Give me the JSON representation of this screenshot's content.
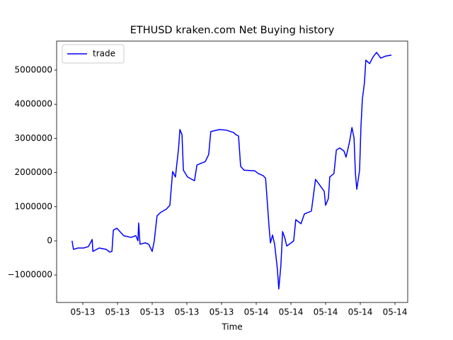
{
  "chart_data": {
    "type": "line",
    "title": "ETHUSD kraken.com Net Buying history",
    "x_label": "Time",
    "legend": "upper left",
    "x": [
      -0.31,
      -0.27,
      -0.14,
      0.02,
      0.16,
      0.22,
      0.27,
      0.29,
      0.47,
      0.67,
      0.78,
      0.84,
      0.88,
      0.98,
      1.18,
      1.39,
      1.53,
      1.59,
      1.61,
      1.65,
      1.8,
      1.9,
      2.0,
      2.06,
      2.14,
      2.24,
      2.41,
      2.51,
      2.59,
      2.67,
      2.76,
      2.8,
      2.86,
      2.9,
      3.02,
      3.22,
      3.29,
      3.53,
      3.63,
      3.69,
      3.94,
      4.14,
      4.35,
      4.41,
      4.49,
      4.55,
      4.65,
      4.96,
      5.06,
      5.2,
      5.27,
      5.37,
      5.41,
      5.47,
      5.53,
      5.61,
      5.65,
      5.71,
      5.76,
      5.82,
      5.88,
      5.98,
      6.08,
      6.14,
      6.29,
      6.39,
      6.59,
      6.71,
      6.84,
      6.96,
      7.0,
      7.08,
      7.12,
      7.24,
      7.31,
      7.41,
      7.53,
      7.59,
      7.69,
      7.76,
      7.82,
      7.86,
      7.9,
      7.98,
      8.02,
      8.06,
      8.12,
      8.16,
      8.27,
      8.37,
      8.47,
      8.59,
      8.73,
      8.9
    ],
    "series": [
      {
        "name": "trade",
        "color": "#0000ff",
        "values": [
          0,
          -250000,
          -210000,
          -210000,
          -170000,
          -60000,
          40000,
          -310000,
          -210000,
          -250000,
          -330000,
          -310000,
          310000,
          370000,
          150000,
          100000,
          150000,
          0,
          520000,
          -100000,
          -60000,
          -100000,
          -310000,
          0,
          730000,
          830000,
          930000,
          1040000,
          2030000,
          1870000,
          2700000,
          3260000,
          3110000,
          2070000,
          1870000,
          1760000,
          2220000,
          2320000,
          2530000,
          3200000,
          3260000,
          3240000,
          3170000,
          3110000,
          3070000,
          2180000,
          2070000,
          2050000,
          1970000,
          1910000,
          1830000,
          410000,
          -60000,
          170000,
          -100000,
          -830000,
          -1410000,
          -730000,
          270000,
          100000,
          -150000,
          -80000,
          0,
          620000,
          500000,
          790000,
          870000,
          1800000,
          1620000,
          1450000,
          1040000,
          1240000,
          1870000,
          1970000,
          2660000,
          2720000,
          2630000,
          2450000,
          2900000,
          3320000,
          3010000,
          1970000,
          1510000,
          2070000,
          3360000,
          4150000,
          4630000,
          5290000,
          5190000,
          5390000,
          5520000,
          5350000,
          5410000,
          5440000
        ]
      }
    ],
    "xlim": [
      -0.755,
      9.367
    ],
    "ylim": [
      -1805000,
      5850000
    ],
    "xticks": [
      {
        "value": 0,
        "label": "05-13"
      },
      {
        "value": 1,
        "label": "05-13"
      },
      {
        "value": 2,
        "label": "05-13"
      },
      {
        "value": 3,
        "label": "05-13"
      },
      {
        "value": 4,
        "label": "05-13"
      },
      {
        "value": 5,
        "label": "05-14"
      },
      {
        "value": 6,
        "label": "05-14"
      },
      {
        "value": 7,
        "label": "05-14"
      },
      {
        "value": 8,
        "label": "05-14"
      },
      {
        "value": 9,
        "label": "05-14"
      }
    ],
    "yticks": [
      {
        "value": -1000000,
        "label": "−1000000"
      },
      0,
      1000000,
      2000000,
      3000000,
      4000000,
      5000000
    ]
  }
}
